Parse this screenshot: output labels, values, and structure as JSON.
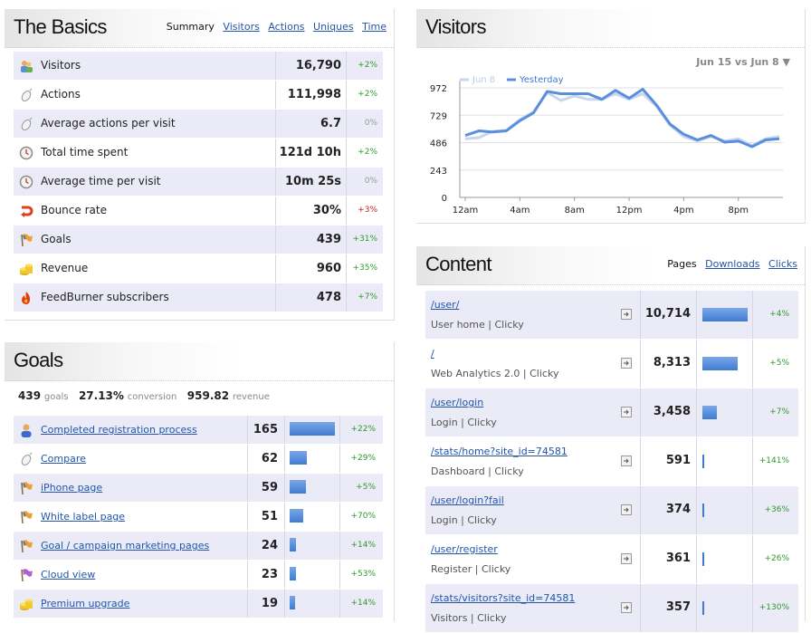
{
  "basics": {
    "title": "The Basics",
    "tabs": [
      {
        "label": "Summary",
        "active": true
      },
      {
        "label": "Visitors",
        "active": false
      },
      {
        "label": "Actions",
        "active": false
      },
      {
        "label": "Uniques",
        "active": false
      },
      {
        "label": "Time",
        "active": false
      }
    ],
    "rows": [
      {
        "icon": "visitors-icon",
        "label": "Visitors",
        "value": "16,790",
        "change": "+2%"
      },
      {
        "icon": "mouse-icon",
        "label": "Actions",
        "value": "111,998",
        "change": "+2%"
      },
      {
        "icon": "mouse-icon",
        "label": "Average actions per visit",
        "value": "6.7",
        "change": "0%"
      },
      {
        "icon": "clock-icon",
        "label": "Total time spent",
        "value": "121d 10h",
        "change": "+2%"
      },
      {
        "icon": "clock-icon",
        "label": "Average time per visit",
        "value": "10m 25s",
        "change": "0%"
      },
      {
        "icon": "bounce-icon",
        "label": "Bounce rate",
        "value": "30%",
        "change": "+3%"
      },
      {
        "icon": "flag-icon",
        "label": "Goals",
        "value": "439",
        "change": "+31%"
      },
      {
        "icon": "coins-icon",
        "label": "Revenue",
        "value": "960",
        "change": "+35%"
      },
      {
        "icon": "feedburner-icon",
        "label": "FeedBurner subscribers",
        "value": "478",
        "change": "+7%"
      }
    ]
  },
  "goals": {
    "title": "Goals",
    "summary": {
      "goals_value": "439",
      "goals_label": "goals",
      "conversion_value": "27.13%",
      "conversion_label": "conversion",
      "revenue_value": "959.82",
      "revenue_label": "revenue"
    },
    "rows": [
      {
        "icon": "user-icon",
        "label": "Completed registration process",
        "value": "165",
        "bar": 1.0,
        "change": "+22%"
      },
      {
        "icon": "mouse-icon",
        "label": "Compare",
        "value": "62",
        "bar": 0.376,
        "change": "+29%"
      },
      {
        "icon": "flag-icon",
        "label": "iPhone page",
        "value": "59",
        "bar": 0.358,
        "change": "+5%"
      },
      {
        "icon": "flag-icon",
        "label": "White label page",
        "value": "51",
        "bar": 0.309,
        "change": "+70%"
      },
      {
        "icon": "flag-icon",
        "label": "Goal / campaign marketing pages",
        "value": "24",
        "bar": 0.145,
        "change": "+14%"
      },
      {
        "icon": "purple-flag-icon",
        "label": "Cloud view",
        "value": "23",
        "bar": 0.139,
        "change": "+53%"
      },
      {
        "icon": "coins-icon",
        "label": "Premium upgrade",
        "value": "19",
        "bar": 0.115,
        "change": "+14%"
      }
    ]
  },
  "visitors": {
    "title": "Visitors",
    "compare_label": "Jun 15 vs Jun 8 ▼",
    "chart_data": {
      "type": "line",
      "x_tick_labels": [
        "12am",
        "4am",
        "8am",
        "12pm",
        "4pm",
        "8pm"
      ],
      "y_ticks": [
        "0",
        "243",
        "486",
        "729",
        "972"
      ],
      "ylim": [
        0,
        972
      ],
      "legend": "top-left",
      "series": [
        {
          "name": "Jun 8",
          "color": "#c9d6f0",
          "values": [
            520,
            530,
            585,
            595,
            690,
            760,
            930,
            860,
            900,
            870,
            870,
            920,
            870,
            920,
            810,
            640,
            540,
            500,
            540,
            500,
            520,
            460,
            520,
            540
          ]
        },
        {
          "name": "Yesterday",
          "color": "#5b8fdc",
          "values": [
            550,
            590,
            580,
            590,
            680,
            750,
            940,
            920,
            920,
            920,
            870,
            950,
            880,
            960,
            820,
            650,
            560,
            510,
            550,
            490,
            500,
            450,
            510,
            520
          ]
        }
      ]
    }
  },
  "content": {
    "title": "Content",
    "tabs": [
      {
        "label": "Pages",
        "active": true
      },
      {
        "label": "Downloads",
        "active": false
      },
      {
        "label": "Clicks",
        "active": false
      }
    ],
    "rows": [
      {
        "url": "/user/",
        "desc": "User home | Clicky",
        "value": "10,714",
        "bar": 1.0,
        "change": "+4%"
      },
      {
        "url": "/",
        "desc": "Web Analytics 2.0 | Clicky",
        "value": "8,313",
        "bar": 0.776,
        "change": "+5%"
      },
      {
        "url": "/user/login",
        "desc": "Login | Clicky",
        "value": "3,458",
        "bar": 0.323,
        "change": "+7%"
      },
      {
        "url": "/stats/home?site_id=74581",
        "desc": "Dashboard | Clicky",
        "value": "591",
        "bar": 0.055,
        "change": "+141%"
      },
      {
        "url": "/user/login?fail",
        "desc": "Login | Clicky",
        "value": "374",
        "bar": 0.035,
        "change": "+36%"
      },
      {
        "url": "/user/register",
        "desc": "Register | Clicky",
        "value": "361",
        "bar": 0.034,
        "change": "+26%"
      },
      {
        "url": "/stats/visitors?site_id=74581",
        "desc": "Visitors | Clicky",
        "value": "357",
        "bar": 0.033,
        "change": "+130%"
      }
    ]
  }
}
